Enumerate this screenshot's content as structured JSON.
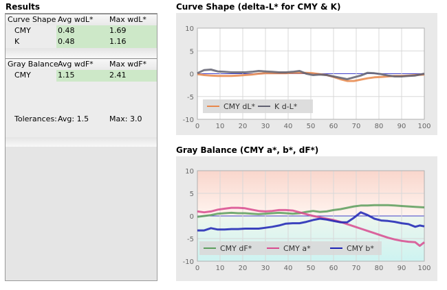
{
  "results": {
    "title": "Results",
    "curve_table": {
      "headers": [
        "Curve Shape",
        "Avg wdL*",
        "Max wdL*"
      ],
      "rows": [
        {
          "name": "CMY",
          "avg": "0.48",
          "max": "1.69"
        },
        {
          "name": "K",
          "avg": "0.48",
          "max": "1.16"
        }
      ]
    },
    "gray_table": {
      "headers": [
        "Gray Balance",
        "Avg wdF*",
        "Max wdF*"
      ],
      "rows": [
        {
          "name": "CMY",
          "avg": "1.15",
          "max": "2.41"
        }
      ]
    },
    "tolerances": {
      "label": "Tolerances:",
      "avg": "Avg: 1.5",
      "max": "Max: 3.0"
    }
  },
  "colors": {
    "orange": "#e8874a",
    "gray_line": "#606070",
    "green": "#5c9e5c",
    "magenta": "#d84a8e",
    "blue": "#1c22b4",
    "highlight": "#cde8c8"
  },
  "chart_data": [
    {
      "type": "line",
      "title": "Curve Shape (delta-L* for CMY & K)",
      "xlim": [
        0,
        100
      ],
      "ylim": [
        -10,
        10
      ],
      "xticks": [
        0,
        10,
        20,
        30,
        40,
        50,
        60,
        70,
        80,
        90,
        100
      ],
      "yticks": [
        10,
        5,
        0,
        -5,
        -10
      ],
      "grid": true,
      "legend": "bottom-left",
      "series": [
        {
          "name": "CMY dL*",
          "color": "#e8874a",
          "x": [
            0,
            3,
            6,
            9,
            12,
            15,
            18,
            21,
            24,
            27,
            30,
            33,
            36,
            39,
            42,
            45,
            48,
            51,
            54,
            57,
            60,
            63,
            66,
            69,
            72,
            75,
            78,
            81,
            84,
            87,
            90,
            93,
            96,
            100
          ],
          "y": [
            -0.1,
            -0.3,
            -0.4,
            -0.5,
            -0.5,
            -0.5,
            -0.4,
            -0.3,
            -0.2,
            0.0,
            0.1,
            0.1,
            0.1,
            0.1,
            0.2,
            0.2,
            0.2,
            0.1,
            -0.1,
            -0.3,
            -0.7,
            -1.2,
            -1.6,
            -1.6,
            -1.3,
            -1.0,
            -0.8,
            -0.7,
            -0.6,
            -0.5,
            -0.5,
            -0.4,
            -0.3,
            -0.2
          ]
        },
        {
          "name": "K d-L*",
          "color": "#606070",
          "x": [
            0,
            3,
            6,
            9,
            12,
            15,
            18,
            21,
            24,
            27,
            30,
            33,
            36,
            39,
            42,
            45,
            48,
            51,
            54,
            57,
            60,
            63,
            66,
            69,
            72,
            75,
            78,
            81,
            84,
            87,
            90,
            93,
            96,
            100
          ],
          "y": [
            0.1,
            0.8,
            0.9,
            0.5,
            0.4,
            0.3,
            0.3,
            0.3,
            0.4,
            0.6,
            0.5,
            0.4,
            0.3,
            0.3,
            0.4,
            0.6,
            0.0,
            -0.3,
            -0.2,
            -0.3,
            -0.6,
            -0.9,
            -1.2,
            -0.8,
            -0.4,
            0.2,
            0.1,
            -0.1,
            -0.4,
            -0.6,
            -0.6,
            -0.5,
            -0.4,
            0.0
          ]
        }
      ]
    },
    {
      "type": "line",
      "title": "Gray Balance (CMY a*, b*, dF*)",
      "xlim": [
        0,
        100
      ],
      "ylim": [
        -10,
        10
      ],
      "xticks": [
        0,
        10,
        20,
        30,
        40,
        50,
        60,
        70,
        80,
        90,
        100
      ],
      "yticks": [
        10,
        5,
        0,
        -5,
        -10
      ],
      "grid": true,
      "legend": "bottom-left",
      "series": [
        {
          "name": "CMY dF*",
          "color": "#5c9e5c",
          "x": [
            0,
            3,
            6,
            9,
            12,
            15,
            18,
            21,
            24,
            27,
            30,
            33,
            36,
            39,
            42,
            45,
            48,
            51,
            54,
            57,
            60,
            63,
            66,
            69,
            72,
            75,
            78,
            81,
            84,
            87,
            90,
            93,
            96,
            100
          ],
          "y": [
            -0.2,
            0.0,
            0.2,
            0.5,
            0.6,
            0.7,
            0.6,
            0.6,
            0.5,
            0.4,
            0.5,
            0.6,
            0.7,
            0.6,
            0.5,
            0.6,
            0.9,
            1.1,
            0.9,
            1.0,
            1.3,
            1.5,
            1.8,
            2.1,
            2.3,
            2.3,
            2.4,
            2.4,
            2.4,
            2.3,
            2.2,
            2.1,
            2.0,
            1.9
          ]
        },
        {
          "name": "CMY a*",
          "color": "#d84a8e",
          "x": [
            0,
            3,
            6,
            9,
            12,
            15,
            18,
            21,
            24,
            27,
            30,
            33,
            36,
            39,
            42,
            45,
            48,
            51,
            54,
            57,
            60,
            63,
            66,
            69,
            72,
            75,
            78,
            81,
            84,
            87,
            90,
            93,
            96,
            98,
            100
          ],
          "y": [
            1.0,
            0.8,
            1.0,
            1.4,
            1.6,
            1.8,
            1.8,
            1.7,
            1.4,
            1.1,
            1.0,
            1.1,
            1.3,
            1.3,
            1.2,
            0.8,
            0.4,
            0.0,
            -0.3,
            -0.6,
            -0.9,
            -1.3,
            -1.8,
            -2.3,
            -2.8,
            -3.3,
            -3.8,
            -4.3,
            -4.8,
            -5.2,
            -5.5,
            -5.7,
            -5.8,
            -6.6,
            -5.8
          ]
        },
        {
          "name": "CMY b*",
          "color": "#1c22b4",
          "x": [
            0,
            3,
            6,
            9,
            12,
            15,
            18,
            21,
            24,
            27,
            30,
            33,
            36,
            39,
            42,
            45,
            48,
            51,
            54,
            57,
            60,
            63,
            66,
            69,
            72,
            75,
            78,
            81,
            84,
            87,
            90,
            93,
            96,
            98,
            100
          ],
          "y": [
            -3.2,
            -3.2,
            -2.7,
            -3.0,
            -3.0,
            -2.9,
            -2.9,
            -2.8,
            -2.8,
            -2.8,
            -2.6,
            -2.4,
            -2.1,
            -1.7,
            -1.6,
            -1.6,
            -1.3,
            -0.9,
            -0.6,
            -0.8,
            -1.1,
            -1.4,
            -1.4,
            -0.4,
            0.8,
            0.2,
            -0.6,
            -1.0,
            -1.1,
            -1.3,
            -1.6,
            -1.8,
            -2.4,
            -2.1,
            -2.3
          ]
        }
      ]
    }
  ]
}
